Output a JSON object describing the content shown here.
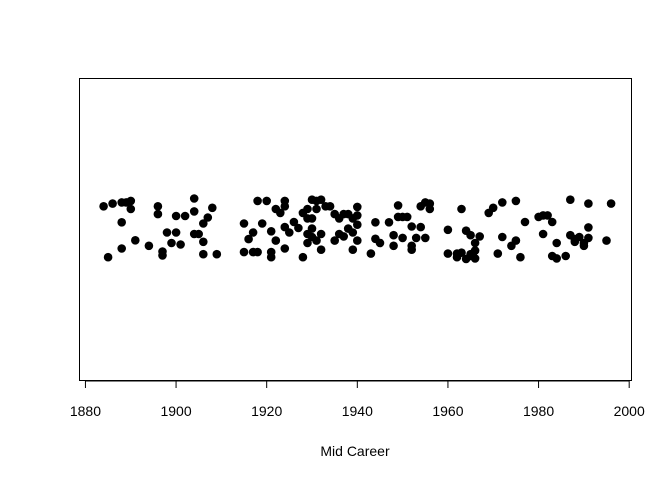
{
  "chart_data": {
    "type": "scatter",
    "title": "",
    "xlabel": "Mid Career",
    "ylabel": "",
    "xlim": [
      1878.8,
      2000.4
    ],
    "ylim": [
      0,
      1
    ],
    "x_ticks": [
      1880,
      1900,
      1920,
      1940,
      1960,
      1980,
      2000
    ],
    "grid": false,
    "y_axis_shown": false,
    "jitter_strip": true,
    "point_color": "#000000",
    "points": [
      [
        1884,
        0.577
      ],
      [
        1885,
        0.408
      ],
      [
        1886,
        0.586
      ],
      [
        1888,
        0.524
      ],
      [
        1888,
        0.59
      ],
      [
        1888,
        0.437
      ],
      [
        1889,
        0.59
      ],
      [
        1890,
        0.595
      ],
      [
        1890,
        0.568
      ],
      [
        1891,
        0.464
      ],
      [
        1894,
        0.446
      ],
      [
        1896,
        0.577
      ],
      [
        1896,
        0.551
      ],
      [
        1897,
        0.427
      ],
      [
        1897,
        0.414
      ],
      [
        1898,
        0.49
      ],
      [
        1899,
        0.455
      ],
      [
        1900,
        0.545
      ],
      [
        1900,
        0.49
      ],
      [
        1901,
        0.45
      ],
      [
        1902,
        0.545
      ],
      [
        1904,
        0.603
      ],
      [
        1904,
        0.56
      ],
      [
        1904,
        0.485
      ],
      [
        1905,
        0.485
      ],
      [
        1906,
        0.52
      ],
      [
        1906,
        0.459
      ],
      [
        1906,
        0.418
      ],
      [
        1907,
        0.54
      ],
      [
        1908,
        0.572
      ],
      [
        1909,
        0.418
      ],
      [
        1915,
        0.425
      ],
      [
        1915,
        0.52
      ],
      [
        1916,
        0.468
      ],
      [
        1917,
        0.425
      ],
      [
        1917,
        0.49
      ],
      [
        1918,
        0.425
      ],
      [
        1918,
        0.595
      ],
      [
        1919,
        0.52
      ],
      [
        1920,
        0.595
      ],
      [
        1921,
        0.425
      ],
      [
        1921,
        0.494
      ],
      [
        1921,
        0.408
      ],
      [
        1922,
        0.568
      ],
      [
        1922,
        0.463
      ],
      [
        1923,
        0.555
      ],
      [
        1924,
        0.595
      ],
      [
        1924,
        0.577
      ],
      [
        1924,
        0.508
      ],
      [
        1924,
        0.437
      ],
      [
        1925,
        0.49
      ],
      [
        1926,
        0.525
      ],
      [
        1927,
        0.505
      ],
      [
        1928,
        0.555
      ],
      [
        1928,
        0.408
      ],
      [
        1929,
        0.568
      ],
      [
        1929,
        0.537
      ],
      [
        1929,
        0.455
      ],
      [
        1929,
        0.485
      ],
      [
        1930,
        0.599
      ],
      [
        1930,
        0.537
      ],
      [
        1930,
        0.475
      ],
      [
        1930,
        0.503
      ],
      [
        1931,
        0.595
      ],
      [
        1931,
        0.568
      ],
      [
        1931,
        0.463
      ],
      [
        1932,
        0.599
      ],
      [
        1932,
        0.485
      ],
      [
        1932,
        0.433
      ],
      [
        1933,
        0.577
      ],
      [
        1934,
        0.577
      ],
      [
        1935,
        0.551
      ],
      [
        1935,
        0.463
      ],
      [
        1936,
        0.537
      ],
      [
        1936,
        0.485
      ],
      [
        1937,
        0.551
      ],
      [
        1937,
        0.477
      ],
      [
        1938,
        0.551
      ],
      [
        1938,
        0.503
      ],
      [
        1939,
        0.537
      ],
      [
        1939,
        0.49
      ],
      [
        1939,
        0.433
      ],
      [
        1940,
        0.575
      ],
      [
        1940,
        0.547
      ],
      [
        1940,
        0.516
      ],
      [
        1940,
        0.463
      ],
      [
        1943,
        0.42
      ],
      [
        1944,
        0.524
      ],
      [
        1944,
        0.469
      ],
      [
        1945,
        0.455
      ],
      [
        1947,
        0.524
      ],
      [
        1948,
        0.446
      ],
      [
        1948,
        0.481
      ],
      [
        1949,
        0.58
      ],
      [
        1949,
        0.542
      ],
      [
        1950,
        0.542
      ],
      [
        1950,
        0.472
      ],
      [
        1951,
        0.542
      ],
      [
        1952,
        0.51
      ],
      [
        1952,
        0.433
      ],
      [
        1952,
        0.446
      ],
      [
        1953,
        0.472
      ],
      [
        1954,
        0.577
      ],
      [
        1954,
        0.508
      ],
      [
        1955,
        0.59
      ],
      [
        1955,
        0.472
      ],
      [
        1956,
        0.586
      ],
      [
        1956,
        0.568
      ],
      [
        1960,
        0.42
      ],
      [
        1960,
        0.499
      ],
      [
        1962,
        0.42
      ],
      [
        1962,
        0.408
      ],
      [
        1963,
        0.568
      ],
      [
        1963,
        0.423
      ],
      [
        1964,
        0.496
      ],
      [
        1964,
        0.402
      ],
      [
        1965,
        0.418
      ],
      [
        1965,
        0.481
      ],
      [
        1965,
        0.412
      ],
      [
        1966,
        0.43
      ],
      [
        1966,
        0.404
      ],
      [
        1966,
        0.455
      ],
      [
        1967,
        0.477
      ],
      [
        1969,
        0.555
      ],
      [
        1970,
        0.572
      ],
      [
        1971,
        0.42
      ],
      [
        1972,
        0.59
      ],
      [
        1972,
        0.475
      ],
      [
        1974,
        0.446
      ],
      [
        1975,
        0.595
      ],
      [
        1975,
        0.463
      ],
      [
        1976,
        0.408
      ],
      [
        1977,
        0.525
      ],
      [
        1980,
        0.542
      ],
      [
        1981,
        0.547
      ],
      [
        1981,
        0.485
      ],
      [
        1982,
        0.547
      ],
      [
        1983,
        0.525
      ],
      [
        1983,
        0.412
      ],
      [
        1984,
        0.404
      ],
      [
        1984,
        0.455
      ],
      [
        1986,
        0.412
      ],
      [
        1987,
        0.599
      ],
      [
        1987,
        0.481
      ],
      [
        1988,
        0.468
      ],
      [
        1988,
        0.459
      ],
      [
        1989,
        0.475
      ],
      [
        1990,
        0.455
      ],
      [
        1990,
        0.446
      ],
      [
        1991,
        0.586
      ],
      [
        1991,
        0.507
      ],
      [
        1991,
        0.472
      ],
      [
        1995,
        0.463
      ],
      [
        1996,
        0.586
      ]
    ]
  }
}
